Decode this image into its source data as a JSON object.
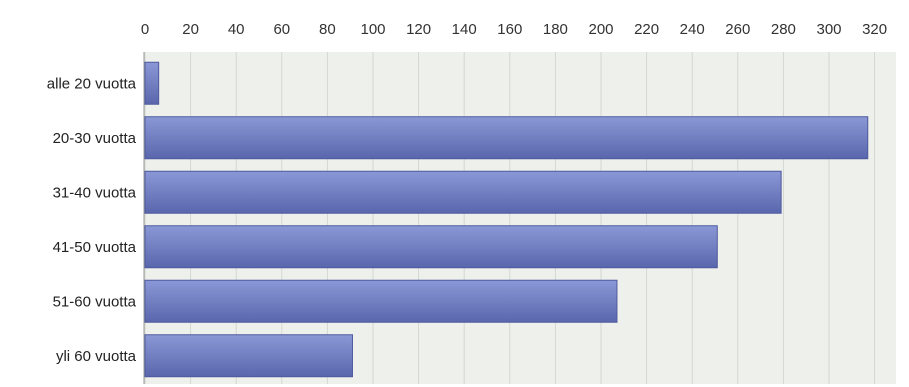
{
  "chart_data": {
    "type": "bar",
    "orientation": "horizontal",
    "categories": [
      "alle 20 vuotta",
      "20-30 vuotta",
      "31-40 vuotta",
      "41-50 vuotta",
      "51-60 vuotta",
      "yli 60 vuotta"
    ],
    "values": [
      6,
      317,
      279,
      251,
      207,
      91
    ],
    "xlim": [
      0,
      330
    ],
    "x_ticks": [
      "0",
      "20",
      "40",
      "60",
      "80",
      "100",
      "120",
      "140",
      "160",
      "180",
      "200",
      "220",
      "240",
      "260",
      "280",
      "300",
      "320"
    ],
    "x_axis_position": "top",
    "grid": true,
    "title": "",
    "xlabel": "",
    "ylabel": "",
    "colors": {
      "bar_top": "#8a98d6",
      "bar_bottom": "#5a66ac",
      "bar_stroke": "#4e5a9e",
      "plot_bg": "#eef0ec",
      "grid": "#d4d8d0",
      "axis": "#9a9a9a"
    }
  }
}
